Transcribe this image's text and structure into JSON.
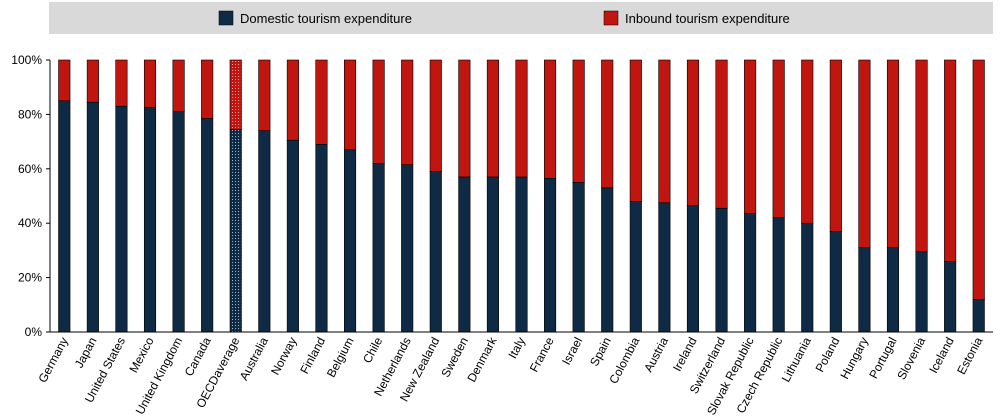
{
  "chart_data": {
    "type": "bar",
    "stacked": true,
    "percent": true,
    "title": "",
    "xlabel": "",
    "ylabel": "",
    "ylim": [
      0,
      100
    ],
    "yticks": [
      "0%",
      "20%",
      "40%",
      "60%",
      "80%",
      "100%"
    ],
    "grid": false,
    "legend_position": "top",
    "categories": [
      "Germany",
      "Japan",
      "United States",
      "Mexico",
      "United Kingdom",
      "Canada",
      "OECDaverage",
      "Australia",
      "Norway",
      "Finland",
      "Belgium",
      "Chile",
      "Netherlands",
      "New Zealand",
      "Sweden",
      "Denmark",
      "Italy",
      "France",
      "Israel",
      "Spain",
      "Colombia",
      "Austria",
      "Ireland",
      "Switzerland",
      "Slovak Republic",
      "Czech Republic",
      "Lithuania",
      "Poland",
      "Hungary",
      "Portugal",
      "Slovenia",
      "Iceland",
      "Estonia"
    ],
    "highlight_category": "OECDaverage",
    "series": [
      {
        "name": "Domestic tourism expenditure",
        "color": "#0f2a45",
        "values": [
          85,
          84.5,
          83,
          82.5,
          81,
          78.5,
          74.5,
          74,
          70.5,
          69,
          67,
          62,
          61.5,
          59,
          57,
          57,
          57,
          56.5,
          55,
          53,
          48,
          47.5,
          46.5,
          45.5,
          43.5,
          42,
          40,
          37,
          31,
          31,
          29.5,
          26,
          12
        ]
      },
      {
        "name": "Inbound tourism expenditure",
        "color": "#c0160f",
        "values": [
          15,
          15.5,
          17,
          17.5,
          19,
          21.5,
          25.5,
          26,
          29.5,
          31,
          33,
          38,
          38.5,
          41,
          43,
          43,
          43,
          43.5,
          45,
          47,
          52,
          52.5,
          53.5,
          54.5,
          56.5,
          58,
          60,
          63,
          69,
          69,
          70.5,
          74,
          88
        ]
      }
    ]
  }
}
